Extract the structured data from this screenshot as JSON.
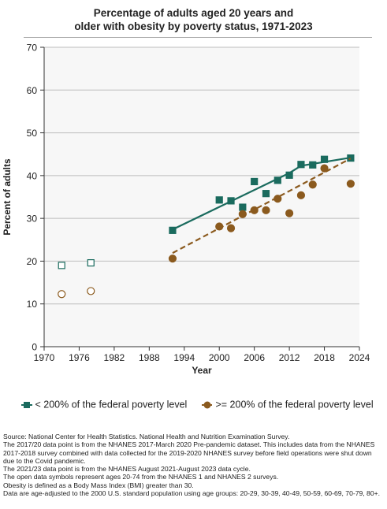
{
  "title_lines": [
    "Percentage of adults aged 20 years and",
    "older with obesity by poverty status, 1971-2023"
  ],
  "chart_data": {
    "type": "scatter",
    "title": "Percentage of adults aged 20 years and older with obesity by poverty status, 1971-2023",
    "xlabel": "Year",
    "ylabel": "Percent of adults",
    "xlim": [
      1970,
      2024
    ],
    "ylim": [
      0,
      70
    ],
    "xticks": [
      1970,
      1976,
      1982,
      1988,
      1994,
      2000,
      2006,
      2012,
      2018,
      2024
    ],
    "yticks": [
      0,
      10,
      20,
      30,
      40,
      50,
      60,
      70
    ],
    "grid": "horizontal",
    "legend_position": "bottom",
    "series": [
      {
        "name": "< 200% of the federal poverty level",
        "color": "#1a6b5e",
        "marker": "square",
        "points": [
          [
            1992,
            27.2
          ],
          [
            2000,
            34.3
          ],
          [
            2002,
            34.1
          ],
          [
            2004,
            32.6
          ],
          [
            2006,
            38.6
          ],
          [
            2008,
            35.8
          ],
          [
            2010,
            38.9
          ],
          [
            2012,
            40.1
          ],
          [
            2014,
            42.6
          ],
          [
            2016,
            42.5
          ],
          [
            2018,
            43.8
          ],
          [
            2022.5,
            44.1
          ]
        ],
        "open_points": [
          [
            1973,
            19.0
          ],
          [
            1978,
            19.6
          ]
        ],
        "trend": [
          [
            1992,
            27.4
          ],
          [
            2012,
            40.6
          ],
          [
            2014,
            42.3
          ],
          [
            2022.5,
            44.2
          ]
        ],
        "trend_style": "solid"
      },
      {
        "name": ">= 200% of the federal poverty level",
        "color": "#8b5a1e",
        "marker": "circle",
        "points": [
          [
            1992,
            20.6
          ],
          [
            2000,
            28.1
          ],
          [
            2002,
            27.7
          ],
          [
            2004,
            31.0
          ],
          [
            2006,
            31.9
          ],
          [
            2008,
            31.9
          ],
          [
            2010,
            34.6
          ],
          [
            2012,
            31.2
          ],
          [
            2014,
            35.4
          ],
          [
            2016,
            37.9
          ],
          [
            2018,
            41.7
          ],
          [
            2022.5,
            38.1
          ]
        ],
        "open_points": [
          [
            1973,
            12.3
          ],
          [
            1978,
            13.0
          ]
        ],
        "trend": [
          [
            1992,
            21.9
          ],
          [
            2022.5,
            44.0
          ]
        ],
        "trend_style": "dashed"
      }
    ]
  },
  "notes": [
    "Source: National Center for Health Statistics. National Health and Nutrition Examination Survey.",
    "The 2017/20 data point is from the NHANES 2017-March 2020 Pre-pandemic dataset. This includes data from the NHANES 2017-2018 survey combined with data collected for the 2019-2020 NHANES survey before field operations were shut down due to the Covid pandemic.",
    "The 2021/23 data point is from the NHANES August 2021-August 2023 data cycle.",
    "The open data symbols represent ages 20-74 from the NHANES 1 and NHANES 2 surveys.",
    "Obesity is defined as a Body Mass Index (BMI) greater than 30.",
    "Data are age-adjusted to the 2000 U.S. standard population using age groups: 20-29, 30-39, 40-49, 50-59, 60-69, 70-79, 80+."
  ]
}
